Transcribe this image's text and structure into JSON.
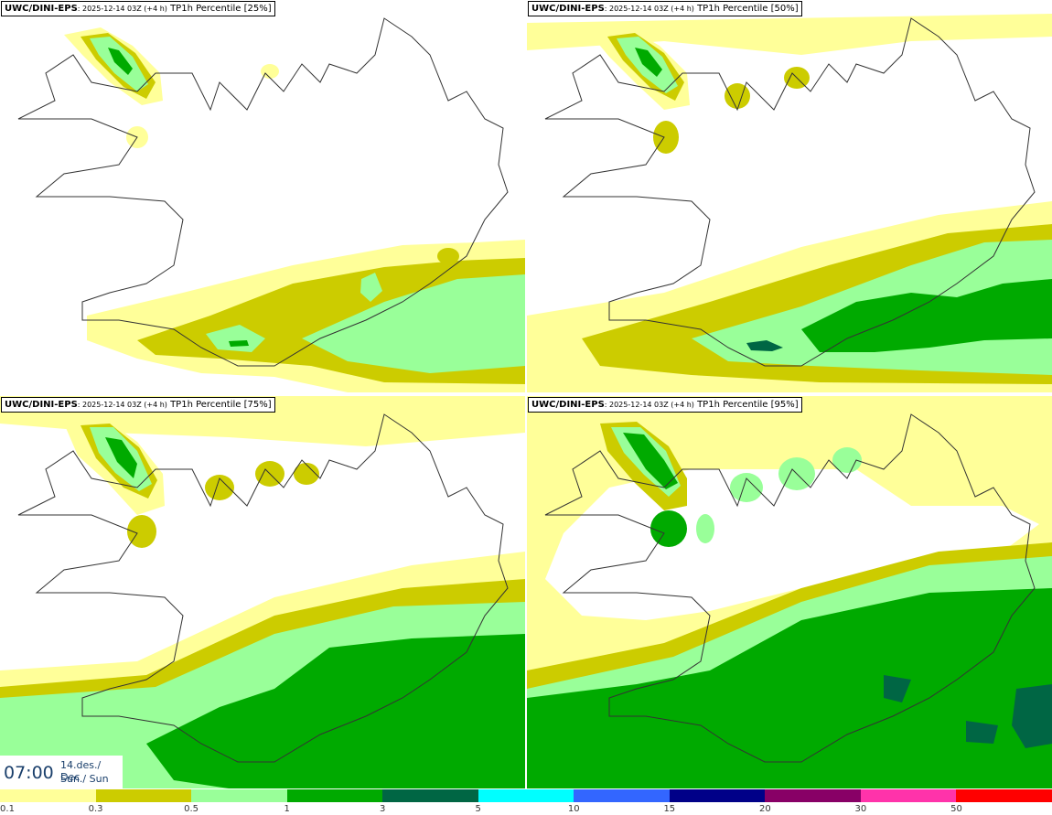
{
  "panels": [
    {
      "model": "UWC/DINI-EPS",
      "run": ": 2025-12-14 03Z (+4 h)",
      "product": " TP1h Percentile [25%]"
    },
    {
      "model": "UWC/DINI-EPS",
      "run": ": 2025-12-14 03Z (+4 h)",
      "product": " TP1h Percentile [50%]"
    },
    {
      "model": "UWC/DINI-EPS",
      "run": ": 2025-12-14 03Z (+4 h)",
      "product": " TP1h Percentile [75%]"
    },
    {
      "model": "UWC/DINI-EPS",
      "run": ": 2025-12-14 03Z (+4 h)",
      "product": " TP1h Percentile [95%]"
    }
  ],
  "valid_time": {
    "time": "07:00",
    "date": "14.des./ Dec",
    "day": "Sun./ Sun"
  },
  "legend": {
    "colors": [
      "#ffff99",
      "#cccc00",
      "#99ff99",
      "#00aa00",
      "#006644",
      "#00ffff",
      "#3366ff",
      "#000088",
      "#880066",
      "#ff33aa",
      "#ff0000"
    ],
    "labels": [
      "0.1",
      "0.3",
      "0.5",
      "1",
      "3",
      "5",
      "10",
      "15",
      "20",
      "30",
      "50"
    ]
  },
  "palette": {
    "light_yellow": "#ffff99",
    "olive": "#cccc00",
    "light_green": "#99ff99",
    "green": "#00aa00",
    "dark_green": "#006644"
  }
}
